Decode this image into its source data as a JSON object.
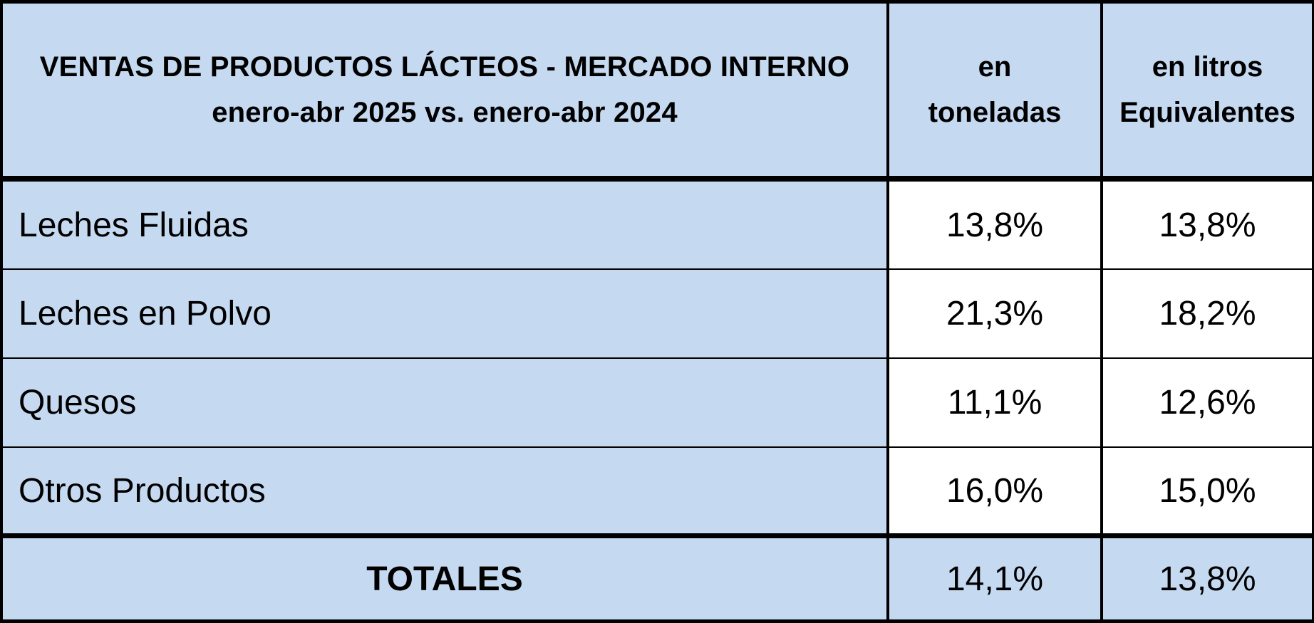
{
  "header": {
    "title_line1": "VENTAS DE PRODUCTOS LÁCTEOS - MERCADO INTERNO",
    "title_line2": "enero-abr 2025 vs. enero-abr 2024",
    "col2_line1": "en",
    "col2_line2": "toneladas",
    "col3_line1": "en litros",
    "col3_line2": "Equivalentes"
  },
  "rows": [
    {
      "label": "Leches Fluidas",
      "toneladas": "13,8%",
      "litros": "13,8%"
    },
    {
      "label": "Leches en Polvo",
      "toneladas": "21,3%",
      "litros": "18,2%"
    },
    {
      "label": "Quesos",
      "toneladas": "11,1%",
      "litros": "12,6%"
    },
    {
      "label": "Otros Productos",
      "toneladas": "16,0%",
      "litros": "15,0%"
    }
  ],
  "totals": {
    "label": "TOTALES",
    "toneladas": "14,1%",
    "litros": "13,8%"
  },
  "colors": {
    "header_fill": "#c5d9f1",
    "value_fill": "#ffffff",
    "border": "#000000"
  }
}
